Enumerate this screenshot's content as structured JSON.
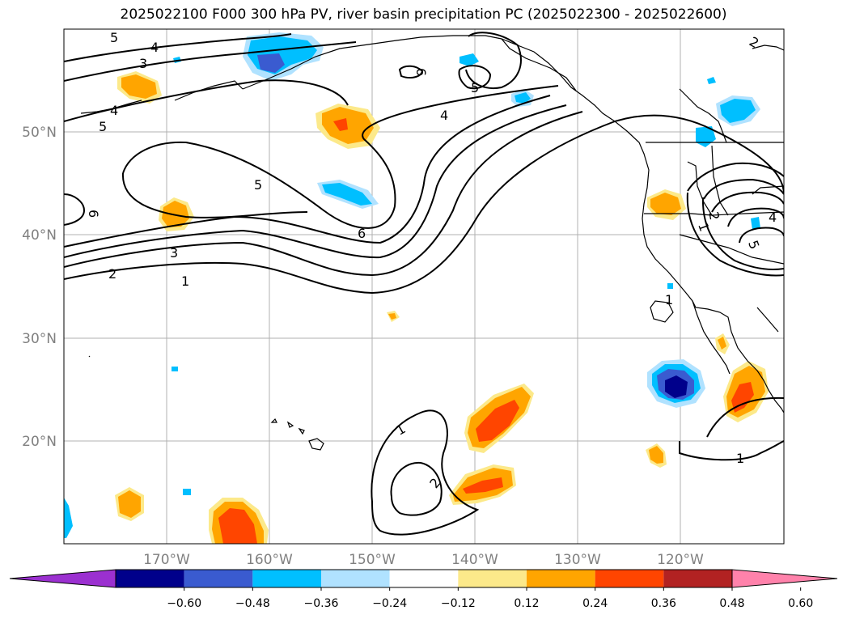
{
  "title": "2025022100 F000 300 hPa PV, river basin precipitation PC (2025022300 - 2025022600)",
  "latitude_labels": [
    "50°N",
    "40°N",
    "30°N",
    "20°N"
  ],
  "longitude_labels": [
    "170°W",
    "160°W",
    "150°W",
    "140°W",
    "130°W",
    "120°W"
  ],
  "colorbar": {
    "ticks": [
      "−0.60",
      "−0.48",
      "−0.36",
      "−0.24",
      "−0.12",
      "0.12",
      "0.24",
      "0.36",
      "0.48",
      "0.60"
    ],
    "colors": [
      "#9b30d0",
      "#00008b",
      "#3a5bd0",
      "#00bfff",
      "#b0e2ff",
      "#ffffff",
      "#fce98a",
      "#ffa500",
      "#ff4500",
      "#b22222",
      "#ff82ab"
    ]
  },
  "contour_labels": [
    "5",
    "4",
    "3",
    "4",
    "5",
    "6",
    "5",
    "4",
    "5",
    "6",
    "3",
    "2",
    "1",
    "6",
    "2",
    "1",
    "2",
    "4",
    "5",
    "1",
    "1",
    "2",
    "1"
  ]
}
